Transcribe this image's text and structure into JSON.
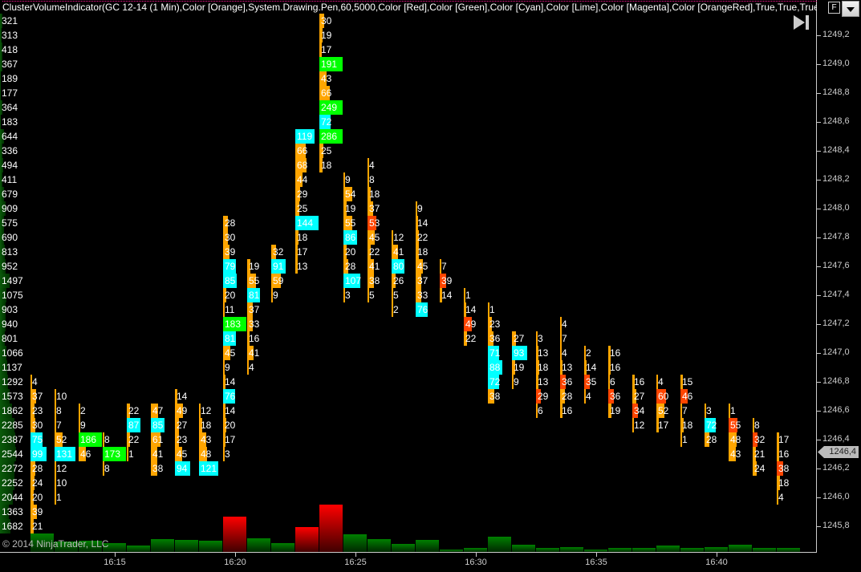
{
  "header": {
    "title": "ClusterVolumeIndicator(GC 12-14 (1 Min),Color [Orange],System.Drawing.Pen,60,5000,Color [Red],Color [Green],Color [Cyan],Color [Lime],Color [Magenta],Color [OrangeRed],True,True,True,True,True",
    "f_button": "F",
    "dropdown_icon": "chevron-down-icon",
    "play_icon": "skip-to-end-icon"
  },
  "copyright": "© 2014 NinjaTrader, LLC",
  "colors": {
    "o": "#ffa500",
    "c": "#00ffff",
    "g": "#00ff00",
    "r": "#ff4500",
    "up": "#008000",
    "down": "#ff0000",
    "background": "#000000"
  },
  "chart_data": {
    "type": "heatmap",
    "description_type": "cluster volume footprint",
    "price_step": 0.1,
    "ylim": [
      1245.8,
      1249.3
    ],
    "y_ticks": [
      "1249,2",
      "1249,0",
      "1248,8",
      "1248,6",
      "1248,4",
      "1248,2",
      "1248,0",
      "1247,8",
      "1247,6",
      "1247,4",
      "1247,2",
      "1247,0",
      "1246,8",
      "1246,6",
      "1246,4",
      "1246,2",
      "1246,0",
      "1245,8"
    ],
    "y_tick_values": [
      1249.2,
      1249.0,
      1248.8,
      1248.6,
      1248.4,
      1248.2,
      1248.0,
      1247.8,
      1247.6,
      1247.4,
      1247.2,
      1247.0,
      1246.8,
      1246.6,
      1246.4,
      1246.2,
      1246.0,
      1245.8
    ],
    "x_ticks": [
      "16:15",
      "16:20",
      "16:25",
      "16:30",
      "16:35",
      "16:40"
    ],
    "last_price": "1246,4",
    "last_price_value": 1246.4,
    "price_totals_top": 1249.3,
    "price_totals": [
      321,
      313,
      418,
      367,
      189,
      177,
      364,
      183,
      644,
      336,
      494,
      411,
      679,
      909,
      575,
      690,
      813,
      952,
      1497,
      1075,
      903,
      940,
      801,
      1066,
      1137,
      1292,
      1573,
      1862,
      2285,
      2387,
      2544,
      2272,
      2252,
      2044,
      1363,
      1682
    ],
    "columns": [
      {
        "time": "16:12",
        "dir": "up",
        "high": 1246.8,
        "cells": [
          [
            4,
            "o"
          ],
          [
            37,
            "o"
          ],
          [
            23,
            "o"
          ],
          [
            30,
            "o"
          ],
          [
            75,
            "c"
          ],
          [
            99,
            "c"
          ],
          [
            28,
            "o"
          ],
          [
            24,
            "o"
          ],
          [
            20,
            "o"
          ],
          [
            39,
            "o"
          ],
          [
            21,
            "o"
          ]
        ]
      },
      {
        "time": "16:13",
        "dir": "up",
        "high": 1246.7,
        "cells": [
          [
            10,
            "o"
          ],
          [
            8,
            "o"
          ],
          [
            7,
            "o"
          ],
          [
            52,
            "o"
          ],
          [
            131,
            "c"
          ],
          [
            12,
            "o"
          ],
          [
            10,
            "o"
          ],
          [
            1,
            "o"
          ]
        ]
      },
      {
        "time": "16:14",
        "dir": "up",
        "high": 1246.6,
        "cells": [
          [
            2,
            "o"
          ],
          [
            9,
            "o"
          ],
          [
            186,
            "g"
          ],
          [
            46,
            "o"
          ]
        ]
      },
      {
        "time": "16:15",
        "dir": "up",
        "high": 1246.4,
        "cells": [
          [
            8,
            "o"
          ],
          [
            173,
            "g"
          ],
          [
            8,
            "o"
          ]
        ]
      },
      {
        "time": "16:16",
        "dir": "up",
        "high": 1246.6,
        "cells": [
          [
            22,
            "o"
          ],
          [
            87,
            "c"
          ],
          [
            22,
            "o"
          ],
          [
            1,
            "o"
          ]
        ]
      },
      {
        "time": "16:17",
        "dir": "up",
        "high": 1246.6,
        "cells": [
          [
            47,
            "o"
          ],
          [
            85,
            "c"
          ],
          [
            61,
            "o"
          ],
          [
            41,
            "o"
          ],
          [
            38,
            "o"
          ]
        ]
      },
      {
        "time": "16:18",
        "dir": "up",
        "high": 1246.7,
        "cells": [
          [
            14,
            "o"
          ],
          [
            49,
            "o"
          ],
          [
            27,
            "o"
          ],
          [
            23,
            "o"
          ],
          [
            45,
            "o"
          ],
          [
            94,
            "c"
          ]
        ]
      },
      {
        "time": "16:19",
        "dir": "up",
        "high": 1246.6,
        "cells": [
          [
            12,
            "o"
          ],
          [
            18,
            "o"
          ],
          [
            43,
            "o"
          ],
          [
            48,
            "o"
          ],
          [
            121,
            "c"
          ]
        ]
      },
      {
        "time": "16:20",
        "dir": "down",
        "high": 1247.9,
        "cells": [
          [
            28,
            "o"
          ],
          [
            30,
            "o"
          ],
          [
            39,
            "o"
          ],
          [
            79,
            "c"
          ],
          [
            85,
            "c"
          ],
          [
            20,
            "o"
          ],
          [
            11,
            "o"
          ],
          [
            183,
            "g"
          ],
          [
            81,
            "c"
          ],
          [
            45,
            "o"
          ],
          [
            9,
            "o"
          ],
          [
            14,
            "o"
          ],
          [
            76,
            "c"
          ],
          [
            14,
            "o"
          ],
          [
            20,
            "o"
          ],
          [
            17,
            "o"
          ],
          [
            3,
            "o"
          ]
        ]
      },
      {
        "time": "16:21",
        "dir": "up",
        "high": 1247.6,
        "cells": [
          [
            19,
            "o"
          ],
          [
            55,
            "o"
          ],
          [
            81,
            "c"
          ],
          [
            37,
            "o"
          ],
          [
            33,
            "o"
          ],
          [
            16,
            "o"
          ],
          [
            41,
            "o"
          ],
          [
            4,
            "o"
          ]
        ]
      },
      {
        "time": "16:22",
        "dir": "up",
        "high": 1247.7,
        "cells": [
          [
            32,
            "o"
          ],
          [
            91,
            "c"
          ],
          [
            59,
            "o"
          ],
          [
            9,
            "o"
          ]
        ]
      },
      {
        "time": "16:23",
        "dir": "down",
        "high": 1248.5,
        "cells": [
          [
            119,
            "c"
          ],
          [
            66,
            "o"
          ],
          [
            68,
            "o"
          ],
          [
            44,
            "o"
          ],
          [
            29,
            "o"
          ],
          [
            25,
            "o"
          ],
          [
            144,
            "c"
          ],
          [
            18,
            "o"
          ],
          [
            17,
            "o"
          ],
          [
            13,
            "o"
          ]
        ]
      },
      {
        "time": "16:24",
        "dir": "down",
        "high": 1249.3,
        "cells": [
          [
            30,
            "o"
          ],
          [
            19,
            "o"
          ],
          [
            17,
            "o"
          ],
          [
            191,
            "g"
          ],
          [
            43,
            "o"
          ],
          [
            66,
            "o"
          ],
          [
            249,
            "g"
          ],
          [
            72,
            "c"
          ],
          [
            286,
            "g"
          ],
          [
            25,
            "o"
          ],
          [
            18,
            "o"
          ]
        ]
      },
      {
        "time": "16:25",
        "dir": "up",
        "high": 1248.2,
        "cells": [
          [
            9,
            "o"
          ],
          [
            54,
            "o"
          ],
          [
            19,
            "o"
          ],
          [
            55,
            "o"
          ],
          [
            86,
            "c"
          ],
          [
            20,
            "o"
          ],
          [
            28,
            "o"
          ],
          [
            107,
            "c"
          ],
          [
            3,
            "o"
          ]
        ]
      },
      {
        "time": "16:26",
        "dir": "up",
        "high": 1248.3,
        "cells": [
          [
            4,
            "o"
          ],
          [
            8,
            "o"
          ],
          [
            18,
            "o"
          ],
          [
            37,
            "o"
          ],
          [
            53,
            "r"
          ],
          [
            45,
            "o"
          ],
          [
            22,
            "o"
          ],
          [
            41,
            "o"
          ],
          [
            38,
            "o"
          ],
          [
            5,
            "o"
          ]
        ]
      },
      {
        "time": "16:27",
        "dir": "up",
        "high": 1247.8,
        "cells": [
          [
            12,
            "o"
          ],
          [
            41,
            "o"
          ],
          [
            80,
            "c"
          ],
          [
            26,
            "o"
          ],
          [
            5,
            "o"
          ],
          [
            2,
            "o"
          ]
        ]
      },
      {
        "time": "16:28",
        "dir": "up",
        "high": 1248.0,
        "cells": [
          [
            9,
            "o"
          ],
          [
            14,
            "o"
          ],
          [
            22,
            "o"
          ],
          [
            18,
            "o"
          ],
          [
            45,
            "o"
          ],
          [
            37,
            "o"
          ],
          [
            33,
            "o"
          ],
          [
            76,
            "c"
          ]
        ]
      },
      {
        "time": "16:29",
        "dir": "up",
        "high": 1247.6,
        "cells": [
          [
            7,
            "o"
          ],
          [
            39,
            "r"
          ],
          [
            14,
            "o"
          ]
        ]
      },
      {
        "time": "16:30",
        "dir": "up",
        "high": 1247.4,
        "cells": [
          [
            1,
            "o"
          ],
          [
            14,
            "o"
          ],
          [
            49,
            "r"
          ],
          [
            22,
            "o"
          ]
        ]
      },
      {
        "time": "16:31",
        "dir": "up",
        "high": 1247.3,
        "cells": [
          [
            1,
            "o"
          ],
          [
            23,
            "o"
          ],
          [
            36,
            "o"
          ],
          [
            71,
            "c"
          ],
          [
            88,
            "c"
          ],
          [
            72,
            "c"
          ],
          [
            38,
            "o"
          ]
        ]
      },
      {
        "time": "16:32",
        "dir": "up",
        "high": 1247.1,
        "cells": [
          [
            27,
            "o"
          ],
          [
            93,
            "c"
          ],
          [
            19,
            "o"
          ],
          [
            9,
            "o"
          ]
        ]
      },
      {
        "time": "16:33",
        "dir": "up",
        "high": 1247.1,
        "cells": [
          [
            3,
            "o"
          ],
          [
            13,
            "o"
          ],
          [
            18,
            "o"
          ],
          [
            13,
            "o"
          ],
          [
            29,
            "r"
          ],
          [
            6,
            "o"
          ]
        ]
      },
      {
        "time": "16:34",
        "dir": "up",
        "high": 1247.2,
        "cells": [
          [
            4,
            "o"
          ],
          [
            7,
            "o"
          ],
          [
            4,
            "o"
          ],
          [
            13,
            "o"
          ],
          [
            36,
            "r"
          ],
          [
            28,
            "o"
          ],
          [
            16,
            "o"
          ]
        ]
      },
      {
        "time": "16:35",
        "dir": "up",
        "high": 1247.0,
        "cells": [
          [
            2,
            "o"
          ],
          [
            14,
            "o"
          ],
          [
            35,
            "r"
          ],
          [
            4,
            "o"
          ]
        ]
      },
      {
        "time": "16:36",
        "dir": "up",
        "high": 1247.0,
        "cells": [
          [
            16,
            "o"
          ],
          [
            16,
            "o"
          ],
          [
            6,
            "o"
          ],
          [
            36,
            "r"
          ],
          [
            19,
            "o"
          ]
        ]
      },
      {
        "time": "16:37",
        "dir": "up",
        "high": 1246.8,
        "cells": [
          [
            16,
            "o"
          ],
          [
            27,
            "o"
          ],
          [
            34,
            "r"
          ],
          [
            12,
            "o"
          ]
        ]
      },
      {
        "time": "16:38",
        "dir": "up",
        "high": 1246.8,
        "cells": [
          [
            4,
            "o"
          ],
          [
            60,
            "r"
          ],
          [
            52,
            "o"
          ],
          [
            17,
            "o"
          ]
        ]
      },
      {
        "time": "16:39",
        "dir": "up",
        "high": 1246.8,
        "cells": [
          [
            15,
            "o"
          ],
          [
            46,
            "r"
          ],
          [
            7,
            "o"
          ],
          [
            18,
            "o"
          ],
          [
            1,
            "o"
          ]
        ]
      },
      {
        "time": "16:40",
        "dir": "up",
        "high": 1246.6,
        "cells": [
          [
            3,
            "o"
          ],
          [
            72,
            "c"
          ],
          [
            28,
            "o"
          ]
        ]
      },
      {
        "time": "16:41",
        "dir": "up",
        "high": 1246.6,
        "cells": [
          [
            1,
            "o"
          ],
          [
            55,
            "r"
          ],
          [
            48,
            "o"
          ],
          [
            43,
            "o"
          ]
        ]
      },
      {
        "time": "16:42",
        "dir": "up",
        "high": 1246.5,
        "cells": [
          [
            8,
            "o"
          ],
          [
            32,
            "r"
          ],
          [
            21,
            "o"
          ],
          [
            24,
            "o"
          ]
        ]
      },
      {
        "time": "16:43",
        "dir": "up",
        "high": 1246.4,
        "cells": [
          [
            17,
            "o"
          ],
          [
            16,
            "o"
          ],
          [
            38,
            "r"
          ],
          [
            18,
            "o"
          ],
          [
            4,
            "o"
          ]
        ]
      }
    ]
  }
}
